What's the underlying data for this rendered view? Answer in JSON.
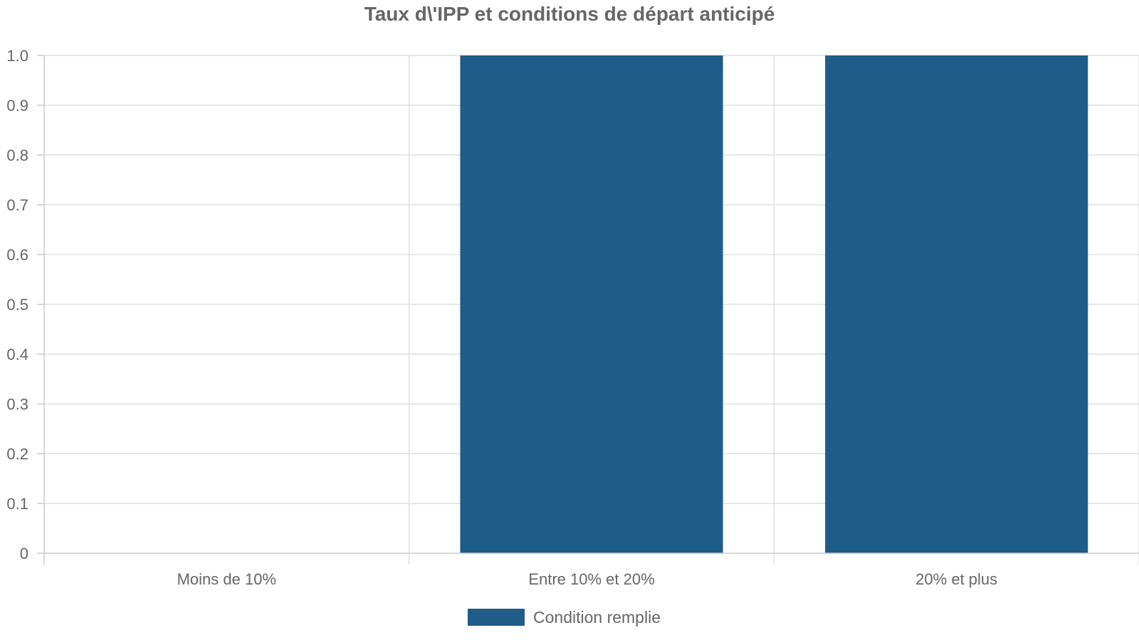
{
  "chart_data": {
    "type": "bar",
    "title": "Taux d\\'IPP et conditions de départ anticipé",
    "categories": [
      "Moins de 10%",
      "Entre 10% et 20%",
      "20% et plus"
    ],
    "series": [
      {
        "name": "Condition remplie",
        "values": [
          0,
          1,
          1
        ],
        "color": "#1f5c87"
      }
    ],
    "xlabel": "",
    "ylabel": "",
    "ylim": [
      0,
      1
    ],
    "y_ticks": [
      0,
      0.1,
      0.2,
      0.3,
      0.4,
      0.5,
      0.6,
      0.7,
      0.8,
      0.9,
      1.0
    ],
    "y_tick_labels": [
      "0",
      "0.1",
      "0.2",
      "0.3",
      "0.4",
      "0.5",
      "0.6",
      "0.7",
      "0.8",
      "0.9",
      "1.0"
    ],
    "grid": true,
    "legend_position": "bottom"
  }
}
